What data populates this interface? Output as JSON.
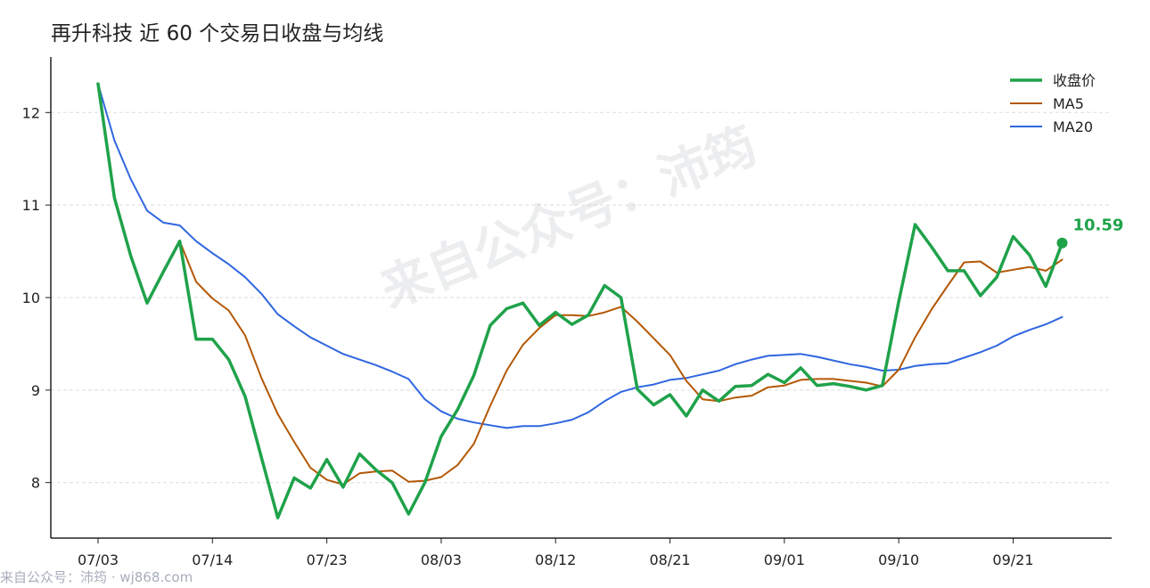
{
  "chart_data": {
    "type": "line",
    "title": "再升科技 近 60 个交易日收盘与均线",
    "xlabel": "",
    "ylabel": "",
    "ylim": [
      7.4,
      12.6
    ],
    "yticks": [
      8,
      9,
      10,
      11,
      12
    ],
    "xtick_labels": [
      {
        "label": "07/03",
        "index": 0
      },
      {
        "label": "07/14",
        "index": 7
      },
      {
        "label": "07/23",
        "index": 14
      },
      {
        "label": "08/03",
        "index": 21
      },
      {
        "label": "08/12",
        "index": 28
      },
      {
        "label": "08/21",
        "index": 35
      },
      {
        "label": "09/01",
        "index": 42
      },
      {
        "label": "09/10",
        "index": 49
      },
      {
        "label": "09/21",
        "index": 56
      }
    ],
    "grid": true,
    "legend_position": "top-right",
    "series": [
      {
        "name": "收盘价",
        "color": "#1fa24a",
        "values": [
          12.31,
          11.08,
          10.45,
          9.94,
          10.28,
          10.61,
          9.55,
          9.55,
          9.33,
          8.93,
          8.27,
          7.62,
          8.05,
          7.94,
          8.25,
          7.95,
          8.31,
          8.14,
          8.0,
          7.66,
          8.0,
          8.5,
          8.79,
          9.16,
          9.7,
          9.88,
          9.94,
          9.7,
          9.84,
          9.71,
          9.81,
          10.13,
          10.0,
          9.01,
          8.84,
          8.95,
          8.72,
          9.0,
          8.88,
          9.04,
          9.05,
          9.17,
          9.08,
          9.24,
          9.05,
          9.07,
          9.04,
          9.0,
          9.05,
          9.96,
          10.79,
          10.55,
          10.29,
          10.29,
          10.02,
          10.22,
          10.66,
          10.46,
          10.12,
          10.59
        ]
      },
      {
        "name": "MA5",
        "color": "#b35806",
        "values": [
          12.31,
          11.08,
          10.45,
          9.94,
          10.28,
          10.61,
          10.17,
          9.99,
          9.86,
          9.59,
          9.13,
          8.74,
          8.44,
          8.16,
          8.03,
          7.98,
          8.1,
          8.12,
          8.13,
          8.01,
          8.02,
          8.06,
          8.19,
          8.42,
          8.83,
          9.21,
          9.49,
          9.67,
          9.81,
          9.81,
          9.8,
          9.84,
          9.9,
          9.74,
          9.56,
          9.38,
          9.1,
          8.9,
          8.88,
          8.92,
          8.94,
          9.03,
          9.05,
          9.11,
          9.12,
          9.12,
          9.1,
          9.08,
          9.04,
          9.22,
          9.57,
          9.87,
          10.13,
          10.38,
          10.39,
          10.27,
          10.3,
          10.33,
          10.29,
          10.41
        ]
      },
      {
        "name": "MA20",
        "color": "#2f66e0",
        "values": [
          12.31,
          11.7,
          11.28,
          10.94,
          10.81,
          10.78,
          10.61,
          10.48,
          10.36,
          10.22,
          10.04,
          9.82,
          9.69,
          9.57,
          9.48,
          9.39,
          9.33,
          9.27,
          9.2,
          9.12,
          8.9,
          8.77,
          8.69,
          8.65,
          8.62,
          8.59,
          8.61,
          8.61,
          8.64,
          8.68,
          8.76,
          8.88,
          8.98,
          9.03,
          9.06,
          9.11,
          9.13,
          9.17,
          9.21,
          9.28,
          9.33,
          9.37,
          9.38,
          9.39,
          9.36,
          9.32,
          9.28,
          9.25,
          9.21,
          9.22,
          9.26,
          9.28,
          9.29,
          9.35,
          9.41,
          9.48,
          9.58,
          9.65,
          9.71,
          9.79
        ]
      }
    ],
    "last_value_label": "10.59"
  },
  "watermark": {
    "center": "来自公众号：沛筠",
    "footer": "来自公众号：沛筠 · wj868.com"
  }
}
